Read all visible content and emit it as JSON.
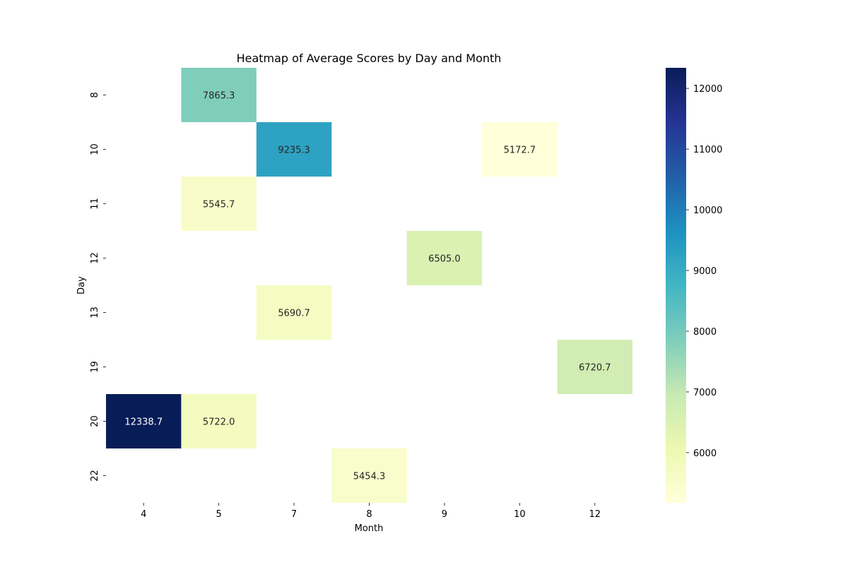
{
  "chart_data": {
    "type": "heatmap",
    "title": "Heatmap of Average Scores by Day and Month",
    "xlabel": "Month",
    "ylabel": "Day",
    "x_categories": [
      "4",
      "5",
      "7",
      "8",
      "9",
      "10",
      "12"
    ],
    "y_categories": [
      "8",
      "10",
      "11",
      "12",
      "13",
      "19",
      "20",
      "22"
    ],
    "cells": [
      {
        "day": "8",
        "month": "5",
        "value": 7865.3
      },
      {
        "day": "10",
        "month": "7",
        "value": 9235.3
      },
      {
        "day": "10",
        "month": "10",
        "value": 5172.7
      },
      {
        "day": "11",
        "month": "5",
        "value": 5545.7
      },
      {
        "day": "12",
        "month": "9",
        "value": 6505.0
      },
      {
        "day": "13",
        "month": "7",
        "value": 5690.7
      },
      {
        "day": "19",
        "month": "12",
        "value": 6720.7
      },
      {
        "day": "20",
        "month": "4",
        "value": 12338.7
      },
      {
        "day": "20",
        "month": "5",
        "value": 5722.0
      },
      {
        "day": "22",
        "month": "8",
        "value": 5454.3
      }
    ],
    "colorbar": {
      "min": 5172.7,
      "max": 12338.7,
      "ticks": [
        6000,
        7000,
        8000,
        9000,
        10000,
        11000,
        12000
      ],
      "colormap": "YlGnBu"
    },
    "grid": false,
    "legend": "colorbar-right"
  }
}
